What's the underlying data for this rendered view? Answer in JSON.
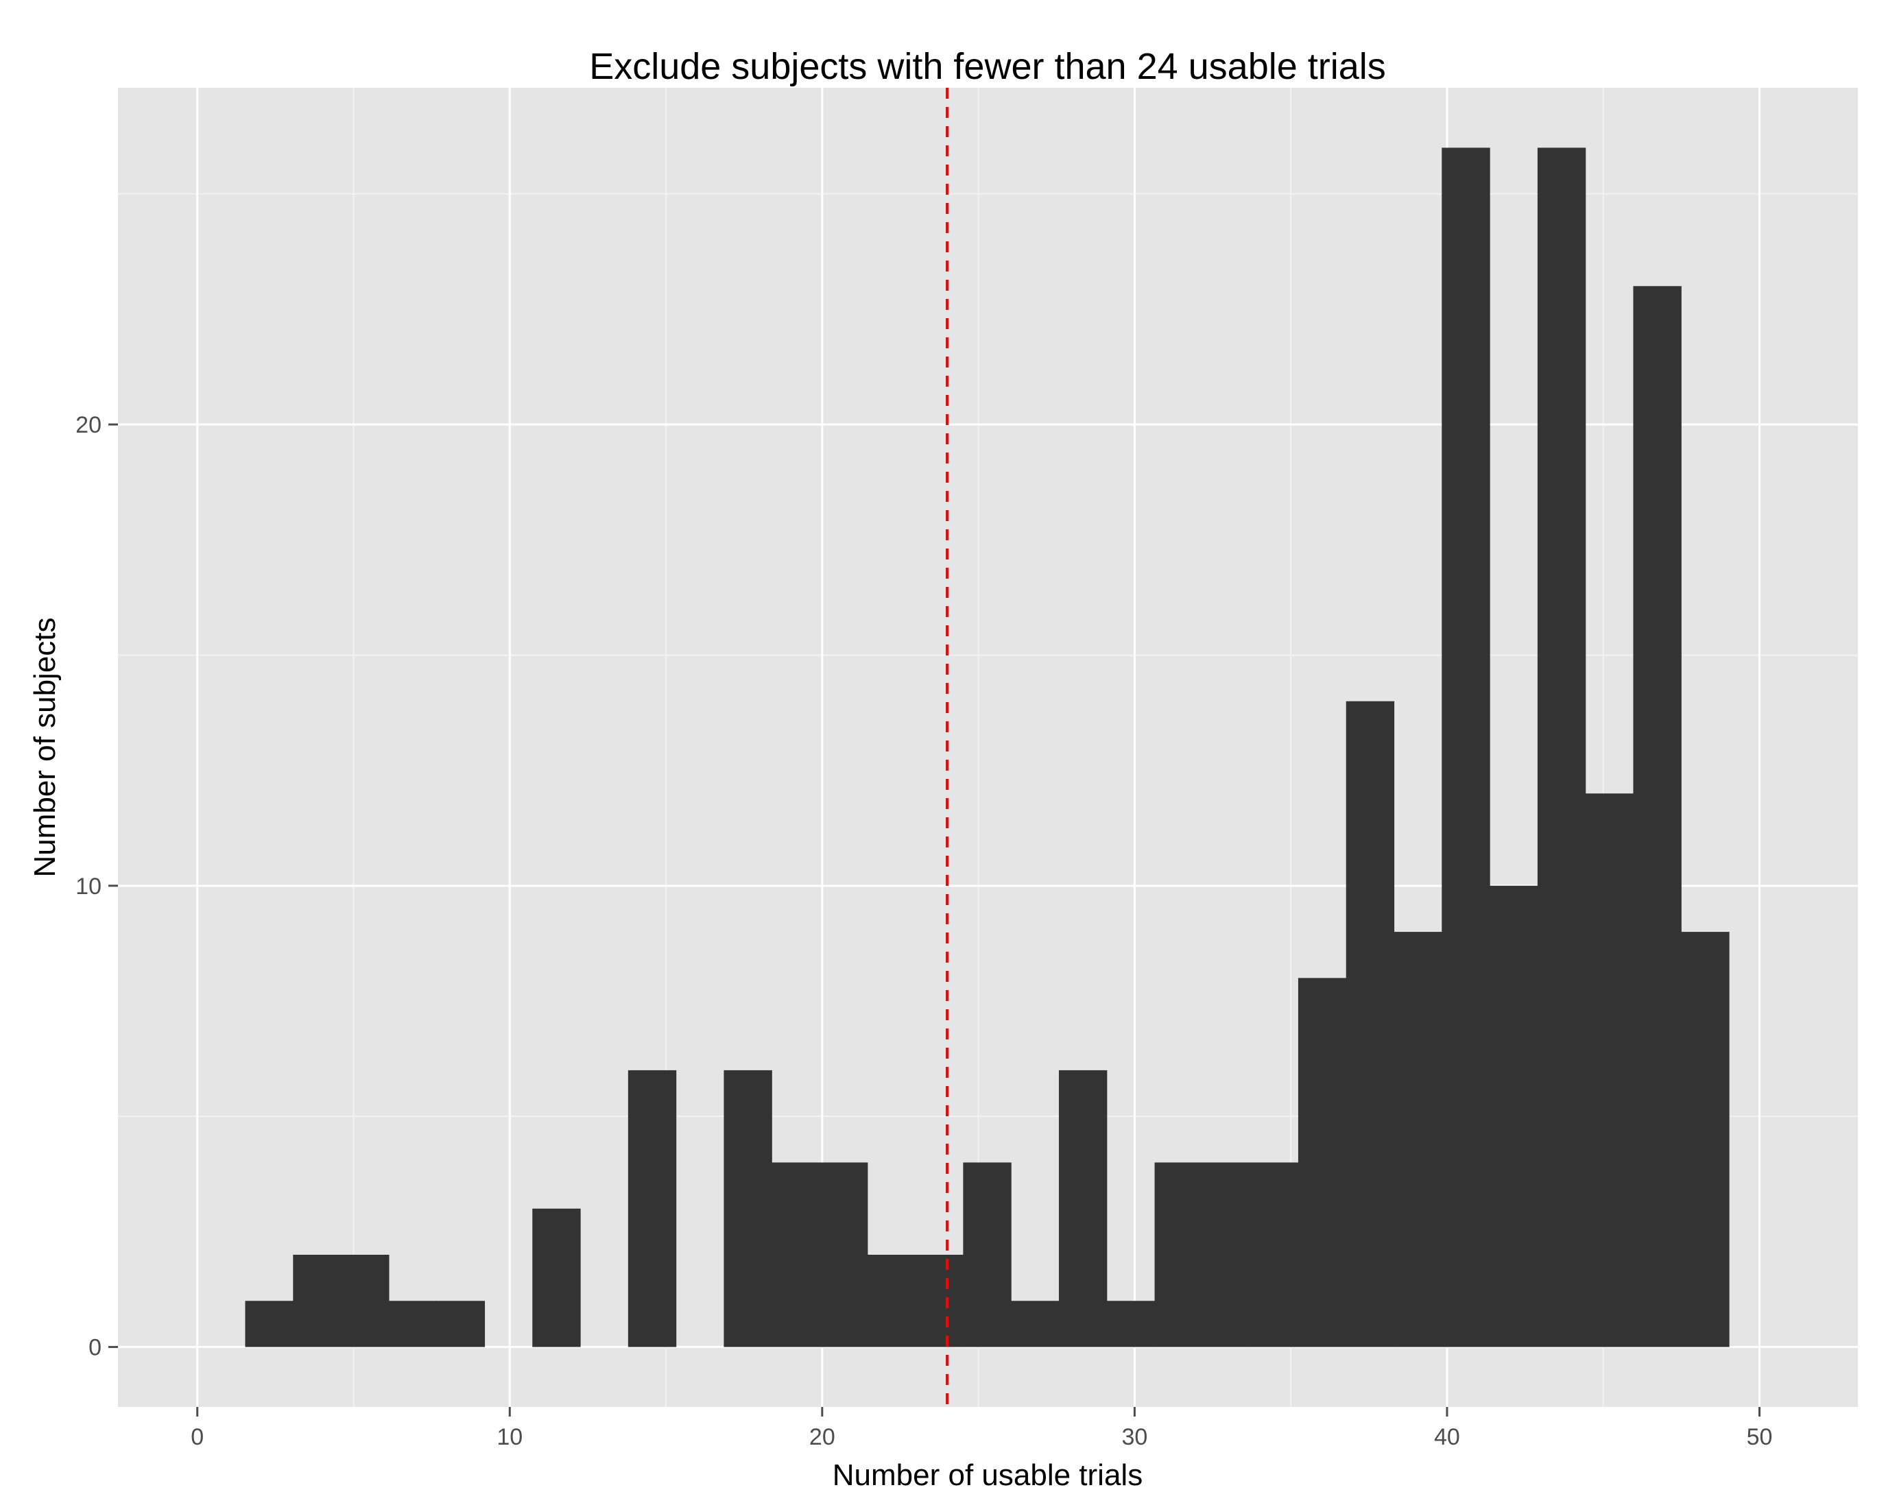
{
  "chart_data": {
    "type": "bar",
    "title": "Exclude subjects with fewer than 24 usable trials",
    "xlabel": "Number of usable trials",
    "ylabel": "Number of subjects",
    "xlim": [
      -2.54,
      53.15
    ],
    "ylim": [
      -1.3,
      27.3
    ],
    "x_ticks": [
      0,
      10,
      20,
      30,
      40,
      50
    ],
    "y_ticks": [
      0,
      10,
      20
    ],
    "grid": true,
    "bin_width": 1.532,
    "bins": [
      {
        "start": 1.532,
        "end": 3.064,
        "count": 1
      },
      {
        "start": 3.064,
        "end": 4.596,
        "count": 2
      },
      {
        "start": 4.596,
        "end": 6.128,
        "count": 2
      },
      {
        "start": 6.128,
        "end": 7.66,
        "count": 1
      },
      {
        "start": 7.66,
        "end": 9.192,
        "count": 1
      },
      {
        "start": 9.192,
        "end": 10.724,
        "count": 0
      },
      {
        "start": 10.724,
        "end": 12.256,
        "count": 3
      },
      {
        "start": 12.256,
        "end": 13.788,
        "count": 0
      },
      {
        "start": 13.788,
        "end": 15.32,
        "count": 6
      },
      {
        "start": 15.32,
        "end": 16.852,
        "count": 0
      },
      {
        "start": 16.852,
        "end": 18.384,
        "count": 6
      },
      {
        "start": 18.384,
        "end": 19.916,
        "count": 4
      },
      {
        "start": 19.916,
        "end": 21.448,
        "count": 4
      },
      {
        "start": 21.448,
        "end": 22.98,
        "count": 2
      },
      {
        "start": 22.98,
        "end": 24.512,
        "count": 2
      },
      {
        "start": 24.512,
        "end": 26.044,
        "count": 4
      },
      {
        "start": 26.044,
        "end": 27.576,
        "count": 1
      },
      {
        "start": 27.576,
        "end": 29.108,
        "count": 6
      },
      {
        "start": 29.108,
        "end": 30.64,
        "count": 1
      },
      {
        "start": 30.64,
        "end": 32.172,
        "count": 4
      },
      {
        "start": 32.172,
        "end": 33.704,
        "count": 4
      },
      {
        "start": 33.704,
        "end": 35.236,
        "count": 4
      },
      {
        "start": 35.236,
        "end": 36.768,
        "count": 8
      },
      {
        "start": 36.768,
        "end": 38.3,
        "count": 14
      },
      {
        "start": 38.3,
        "end": 39.832,
        "count": 9
      },
      {
        "start": 39.832,
        "end": 41.364,
        "count": 26
      },
      {
        "start": 41.364,
        "end": 42.896,
        "count": 10
      },
      {
        "start": 42.896,
        "end": 44.428,
        "count": 26
      },
      {
        "start": 44.428,
        "end": 45.96,
        "count": 12
      },
      {
        "start": 45.96,
        "end": 47.492,
        "count": 23
      },
      {
        "start": 47.492,
        "end": 49.024,
        "count": 9
      }
    ],
    "reference_line": {
      "x": 24,
      "orientation": "vertical",
      "style": "dashed",
      "color": "#ff0000"
    },
    "colors": {
      "bar": "#333333",
      "panel": "#e5e5e5",
      "grid_major": "#ffffff",
      "grid_minor": "#f2f2f2"
    }
  }
}
